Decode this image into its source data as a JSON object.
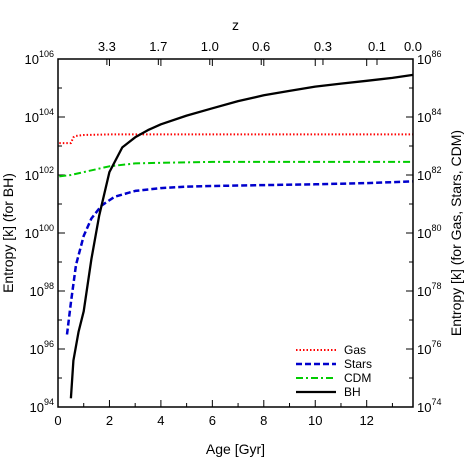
{
  "chart_data": {
    "type": "line",
    "xlabel": "Age [Gyr]",
    "top_xlabel": "z",
    "ylabel_left": "Entropy [k] (for BH)",
    "ylabel_right": "Entropy [k] (for Gas, Stars, CDM)",
    "xlim": [
      0,
      13.8
    ],
    "ylim_left_log10": [
      94,
      106
    ],
    "ylim_right_log10": [
      74,
      86
    ],
    "y_scale": "log",
    "grid": false,
    "legend_placement": "bottom-right",
    "x_ticks": [
      {
        "value": 0,
        "label": "0"
      },
      {
        "value": 2,
        "label": "2"
      },
      {
        "value": 4,
        "label": "4"
      },
      {
        "value": 6,
        "label": "6"
      },
      {
        "value": 8,
        "label": "8"
      },
      {
        "value": 10,
        "label": "10"
      },
      {
        "value": 12,
        "label": "12"
      }
    ],
    "top_ticks": [
      {
        "age": 1.9,
        "label": "3.3"
      },
      {
        "age": 3.9,
        "label": "1.7"
      },
      {
        "age": 5.9,
        "label": "1.0"
      },
      {
        "age": 7.9,
        "label": "0.6"
      },
      {
        "age": 10.3,
        "label": "0.3"
      },
      {
        "age": 12.4,
        "label": "0.1"
      },
      {
        "age": 13.8,
        "label": "0.0"
      }
    ],
    "left_ticks": [
      {
        "exp": 94,
        "base": "10",
        "power": "94"
      },
      {
        "exp": 96,
        "base": "10",
        "power": "96"
      },
      {
        "exp": 98,
        "base": "10",
        "power": "98"
      },
      {
        "exp": 100,
        "base": "10",
        "power": "100"
      },
      {
        "exp": 102,
        "base": "10",
        "power": "102"
      },
      {
        "exp": 104,
        "base": "10",
        "power": "104"
      },
      {
        "exp": 106,
        "base": "10",
        "power": "106"
      }
    ],
    "right_ticks": [
      {
        "exp": 74,
        "base": "10",
        "power": "74"
      },
      {
        "exp": 76,
        "base": "10",
        "power": "76"
      },
      {
        "exp": 78,
        "base": "10",
        "power": "78"
      },
      {
        "exp": 80,
        "base": "10",
        "power": "80"
      },
      {
        "exp": 82,
        "base": "10",
        "power": "82"
      },
      {
        "exp": 84,
        "base": "10",
        "power": "84"
      },
      {
        "exp": 86,
        "base": "10",
        "power": "86"
      }
    ],
    "series": [
      {
        "name": "Gas",
        "axis": "right",
        "color": "#ff0000",
        "dash": "dotted",
        "x": [
          0.05,
          0.5,
          0.6,
          0.7,
          1.0,
          2,
          4,
          6,
          8,
          10,
          12,
          13.8
        ],
        "log10_y": [
          83.1,
          83.1,
          83.3,
          83.35,
          83.38,
          83.4,
          83.4,
          83.4,
          83.4,
          83.4,
          83.4,
          83.4
        ]
      },
      {
        "name": "Stars",
        "axis": "right",
        "color": "#0000cc",
        "dash": "dashed",
        "x": [
          0.35,
          0.5,
          0.7,
          1.0,
          1.3,
          1.7,
          2.2,
          3.0,
          4,
          5,
          6,
          8,
          10,
          12,
          13.8
        ],
        "log10_y": [
          76.5,
          77.6,
          78.9,
          79.9,
          80.5,
          80.95,
          81.25,
          81.45,
          81.55,
          81.6,
          81.62,
          81.65,
          81.68,
          81.72,
          81.78
        ]
      },
      {
        "name": "CDM",
        "axis": "right",
        "color": "#00cc00",
        "dash": "dashdot",
        "x": [
          0.05,
          0.5,
          1.0,
          1.5,
          2.0,
          3,
          4,
          6,
          8,
          10,
          12,
          13.8
        ],
        "log10_y": [
          81.95,
          82.0,
          82.1,
          82.2,
          82.3,
          82.4,
          82.42,
          82.45,
          82.45,
          82.45,
          82.45,
          82.45
        ]
      },
      {
        "name": "BH",
        "axis": "left",
        "color": "#000000",
        "dash": "solid",
        "x": [
          0.5,
          0.6,
          0.8,
          1.0,
          1.3,
          1.6,
          2.0,
          2.5,
          3.0,
          3.5,
          4,
          5,
          6,
          7,
          8,
          9,
          10,
          11,
          12,
          13,
          13.8
        ],
        "log10_y": [
          94.3,
          95.6,
          96.6,
          97.3,
          99.1,
          100.6,
          102.1,
          102.95,
          103.3,
          103.55,
          103.75,
          104.05,
          104.3,
          104.55,
          104.75,
          104.9,
          105.05,
          105.15,
          105.25,
          105.35,
          105.45
        ]
      }
    ]
  }
}
